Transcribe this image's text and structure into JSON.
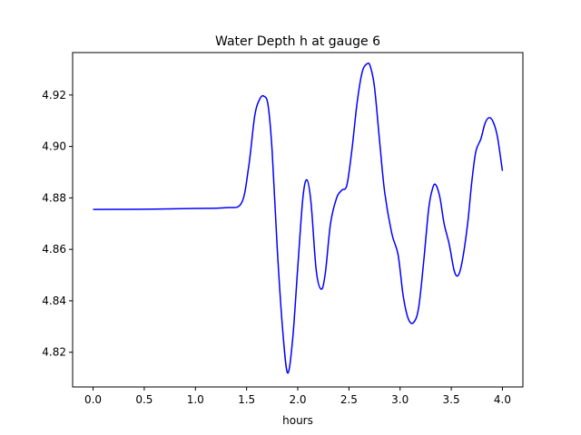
{
  "chart_data": {
    "type": "line",
    "title": "Water Depth h at gauge 6",
    "xlabel": "hours",
    "ylabel": "",
    "xlim": [
      -0.2,
      4.2
    ],
    "ylim": [
      4.8065,
      4.9365
    ],
    "xticks": [
      0.0,
      0.5,
      1.0,
      1.5,
      2.0,
      2.5,
      3.0,
      3.5,
      4.0
    ],
    "xtick_labels": [
      "0.0",
      "0.5",
      "1.0",
      "1.5",
      "2.0",
      "2.5",
      "3.0",
      "3.5",
      "4.0"
    ],
    "yticks": [
      4.82,
      4.84,
      4.86,
      4.88,
      4.9,
      4.92
    ],
    "ytick_labels": [
      "4.82",
      "4.84",
      "4.86",
      "4.88",
      "4.90",
      "4.92"
    ],
    "grid": false,
    "legend": "none",
    "series": [
      {
        "color": "#0000ff",
        "x": [
          0.0,
          0.5,
          1.0,
          1.3,
          1.45,
          1.52,
          1.58,
          1.63,
          1.67,
          1.71,
          1.75,
          1.8,
          1.85,
          1.9,
          1.95,
          2.0,
          2.05,
          2.09,
          2.13,
          2.18,
          2.23,
          2.27,
          2.32,
          2.38,
          2.43,
          2.48,
          2.53,
          2.58,
          2.63,
          2.68,
          2.71,
          2.75,
          2.8,
          2.85,
          2.92,
          2.98,
          3.03,
          3.08,
          3.13,
          3.18,
          3.23,
          3.28,
          3.32,
          3.35,
          3.39,
          3.43,
          3.48,
          3.53,
          3.57,
          3.61,
          3.66,
          3.7,
          3.74,
          3.79,
          3.83,
          3.87,
          3.91,
          3.95,
          4.0
        ],
        "y": [
          4.8755,
          4.8756,
          4.8759,
          4.8762,
          4.878,
          4.892,
          4.912,
          4.9185,
          4.9195,
          4.916,
          4.898,
          4.86,
          4.83,
          4.812,
          4.825,
          4.853,
          4.88,
          4.887,
          4.878,
          4.852,
          4.8445,
          4.851,
          4.87,
          4.88,
          4.883,
          4.885,
          4.899,
          4.917,
          4.929,
          4.9322,
          4.931,
          4.923,
          4.902,
          4.882,
          4.866,
          4.858,
          4.842,
          4.833,
          4.8315,
          4.837,
          4.855,
          4.876,
          4.884,
          4.885,
          4.88,
          4.87,
          4.862,
          4.8515,
          4.85,
          4.856,
          4.87,
          4.886,
          4.898,
          4.903,
          4.909,
          4.9112,
          4.9095,
          4.904,
          4.8905
        ]
      }
    ]
  }
}
